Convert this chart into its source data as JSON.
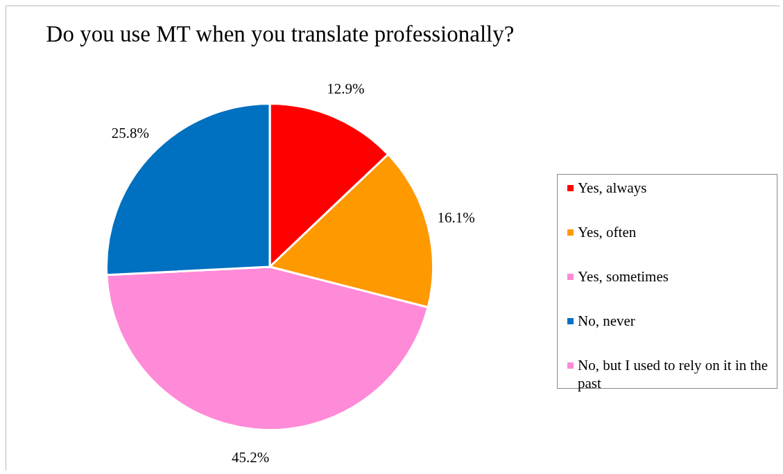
{
  "chart_data": {
    "type": "pie",
    "title": "Do you use MT when you translate professionally?",
    "categories": [
      "Yes, always",
      "Yes, often",
      "Yes, sometimes",
      "No, never",
      "No, but I used to rely on it in the past"
    ],
    "values": [
      12.9,
      16.1,
      45.2,
      25.8,
      0
    ],
    "colors": [
      "#ff0000",
      "#ff9900",
      "#ff8ad8",
      "#0070c0",
      "#ff8ad8"
    ],
    "value_labels": [
      "12.9%",
      "16.1%",
      "45.2%",
      "25.8%",
      null
    ],
    "legend": "right"
  }
}
